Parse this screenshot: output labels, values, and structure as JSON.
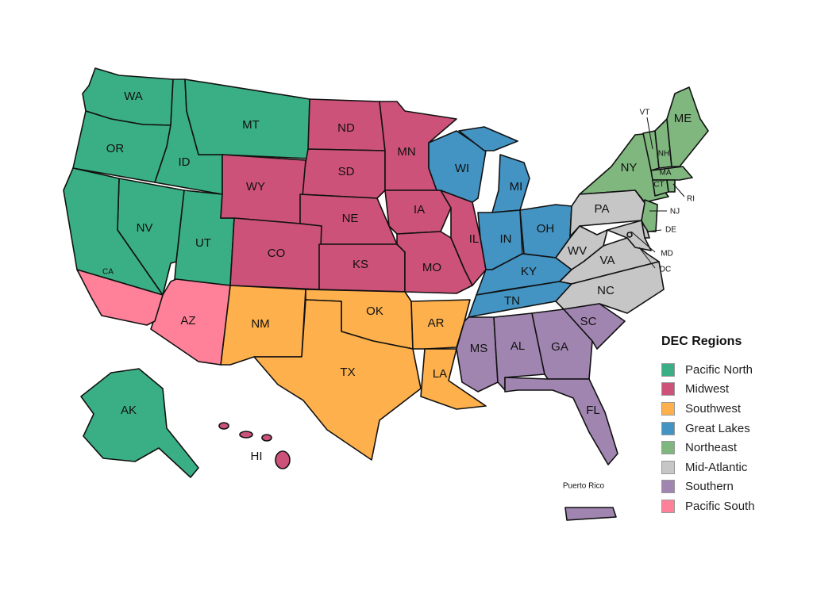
{
  "legend": {
    "title": "DEC Regions",
    "items": [
      {
        "label": "Pacific North",
        "color": "#3aaf85"
      },
      {
        "label": "Midwest",
        "color": "#cc5279"
      },
      {
        "label": "Southwest",
        "color": "#fdb04b"
      },
      {
        "label": "Great Lakes",
        "color": "#4393c3"
      },
      {
        "label": "Northeast",
        "color": "#80b77f"
      },
      {
        "label": "Mid-Atlantic",
        "color": "#c6c6c6"
      },
      {
        "label": "Southern",
        "color": "#a085b0"
      },
      {
        "label": "Pacific South",
        "color": "#fe8199"
      }
    ]
  },
  "states": [
    {
      "label": "WA",
      "region": 0
    },
    {
      "label": "OR",
      "region": 0
    },
    {
      "label": "ID",
      "region": 0
    },
    {
      "label": "MT",
      "region": 0
    },
    {
      "label": "NV",
      "region": 0
    },
    {
      "label": "UT",
      "region": 0
    },
    {
      "label": "CA",
      "region": 0
    },
    {
      "label": "AK",
      "region": 0
    },
    {
      "label": "ND",
      "region": 1
    },
    {
      "label": "SD",
      "region": 1
    },
    {
      "label": "WY",
      "region": 1
    },
    {
      "label": "NE",
      "region": 1
    },
    {
      "label": "CO",
      "region": 1
    },
    {
      "label": "KS",
      "region": 1
    },
    {
      "label": "MN",
      "region": 1
    },
    {
      "label": "IA",
      "region": 1
    },
    {
      "label": "MO",
      "region": 1
    },
    {
      "label": "IL",
      "region": 1
    },
    {
      "label": "HI",
      "region": 1
    },
    {
      "label": "NM",
      "region": 2
    },
    {
      "label": "OK",
      "region": 2
    },
    {
      "label": "TX",
      "region": 2
    },
    {
      "label": "AR",
      "region": 2
    },
    {
      "label": "LA",
      "region": 2
    },
    {
      "label": "WI",
      "region": 3
    },
    {
      "label": "MI",
      "region": 3
    },
    {
      "label": "IN",
      "region": 3
    },
    {
      "label": "OH",
      "region": 3
    },
    {
      "label": "KY",
      "region": 3
    },
    {
      "label": "TN",
      "region": 3
    },
    {
      "label": "NY",
      "region": 4
    },
    {
      "label": "VT",
      "region": 4
    },
    {
      "label": "NH",
      "region": 4
    },
    {
      "label": "ME",
      "region": 4
    },
    {
      "label": "MA",
      "region": 4
    },
    {
      "label": "CT",
      "region": 4
    },
    {
      "label": "RI",
      "region": 4
    },
    {
      "label": "NJ",
      "region": 4
    },
    {
      "label": "PA",
      "region": 5
    },
    {
      "label": "WV",
      "region": 5
    },
    {
      "label": "VA",
      "region": 5
    },
    {
      "label": "NC",
      "region": 5
    },
    {
      "label": "DE",
      "region": 5
    },
    {
      "label": "MD",
      "region": 5
    },
    {
      "label": "DC",
      "region": 5
    },
    {
      "label": "MS",
      "region": 6
    },
    {
      "label": "AL",
      "region": 6
    },
    {
      "label": "GA",
      "region": 6
    },
    {
      "label": "SC",
      "region": 6
    },
    {
      "label": "FL",
      "region": 6
    },
    {
      "label": "Puerto Rico",
      "region": 6
    },
    {
      "label": "AZ",
      "region": 7
    }
  ]
}
